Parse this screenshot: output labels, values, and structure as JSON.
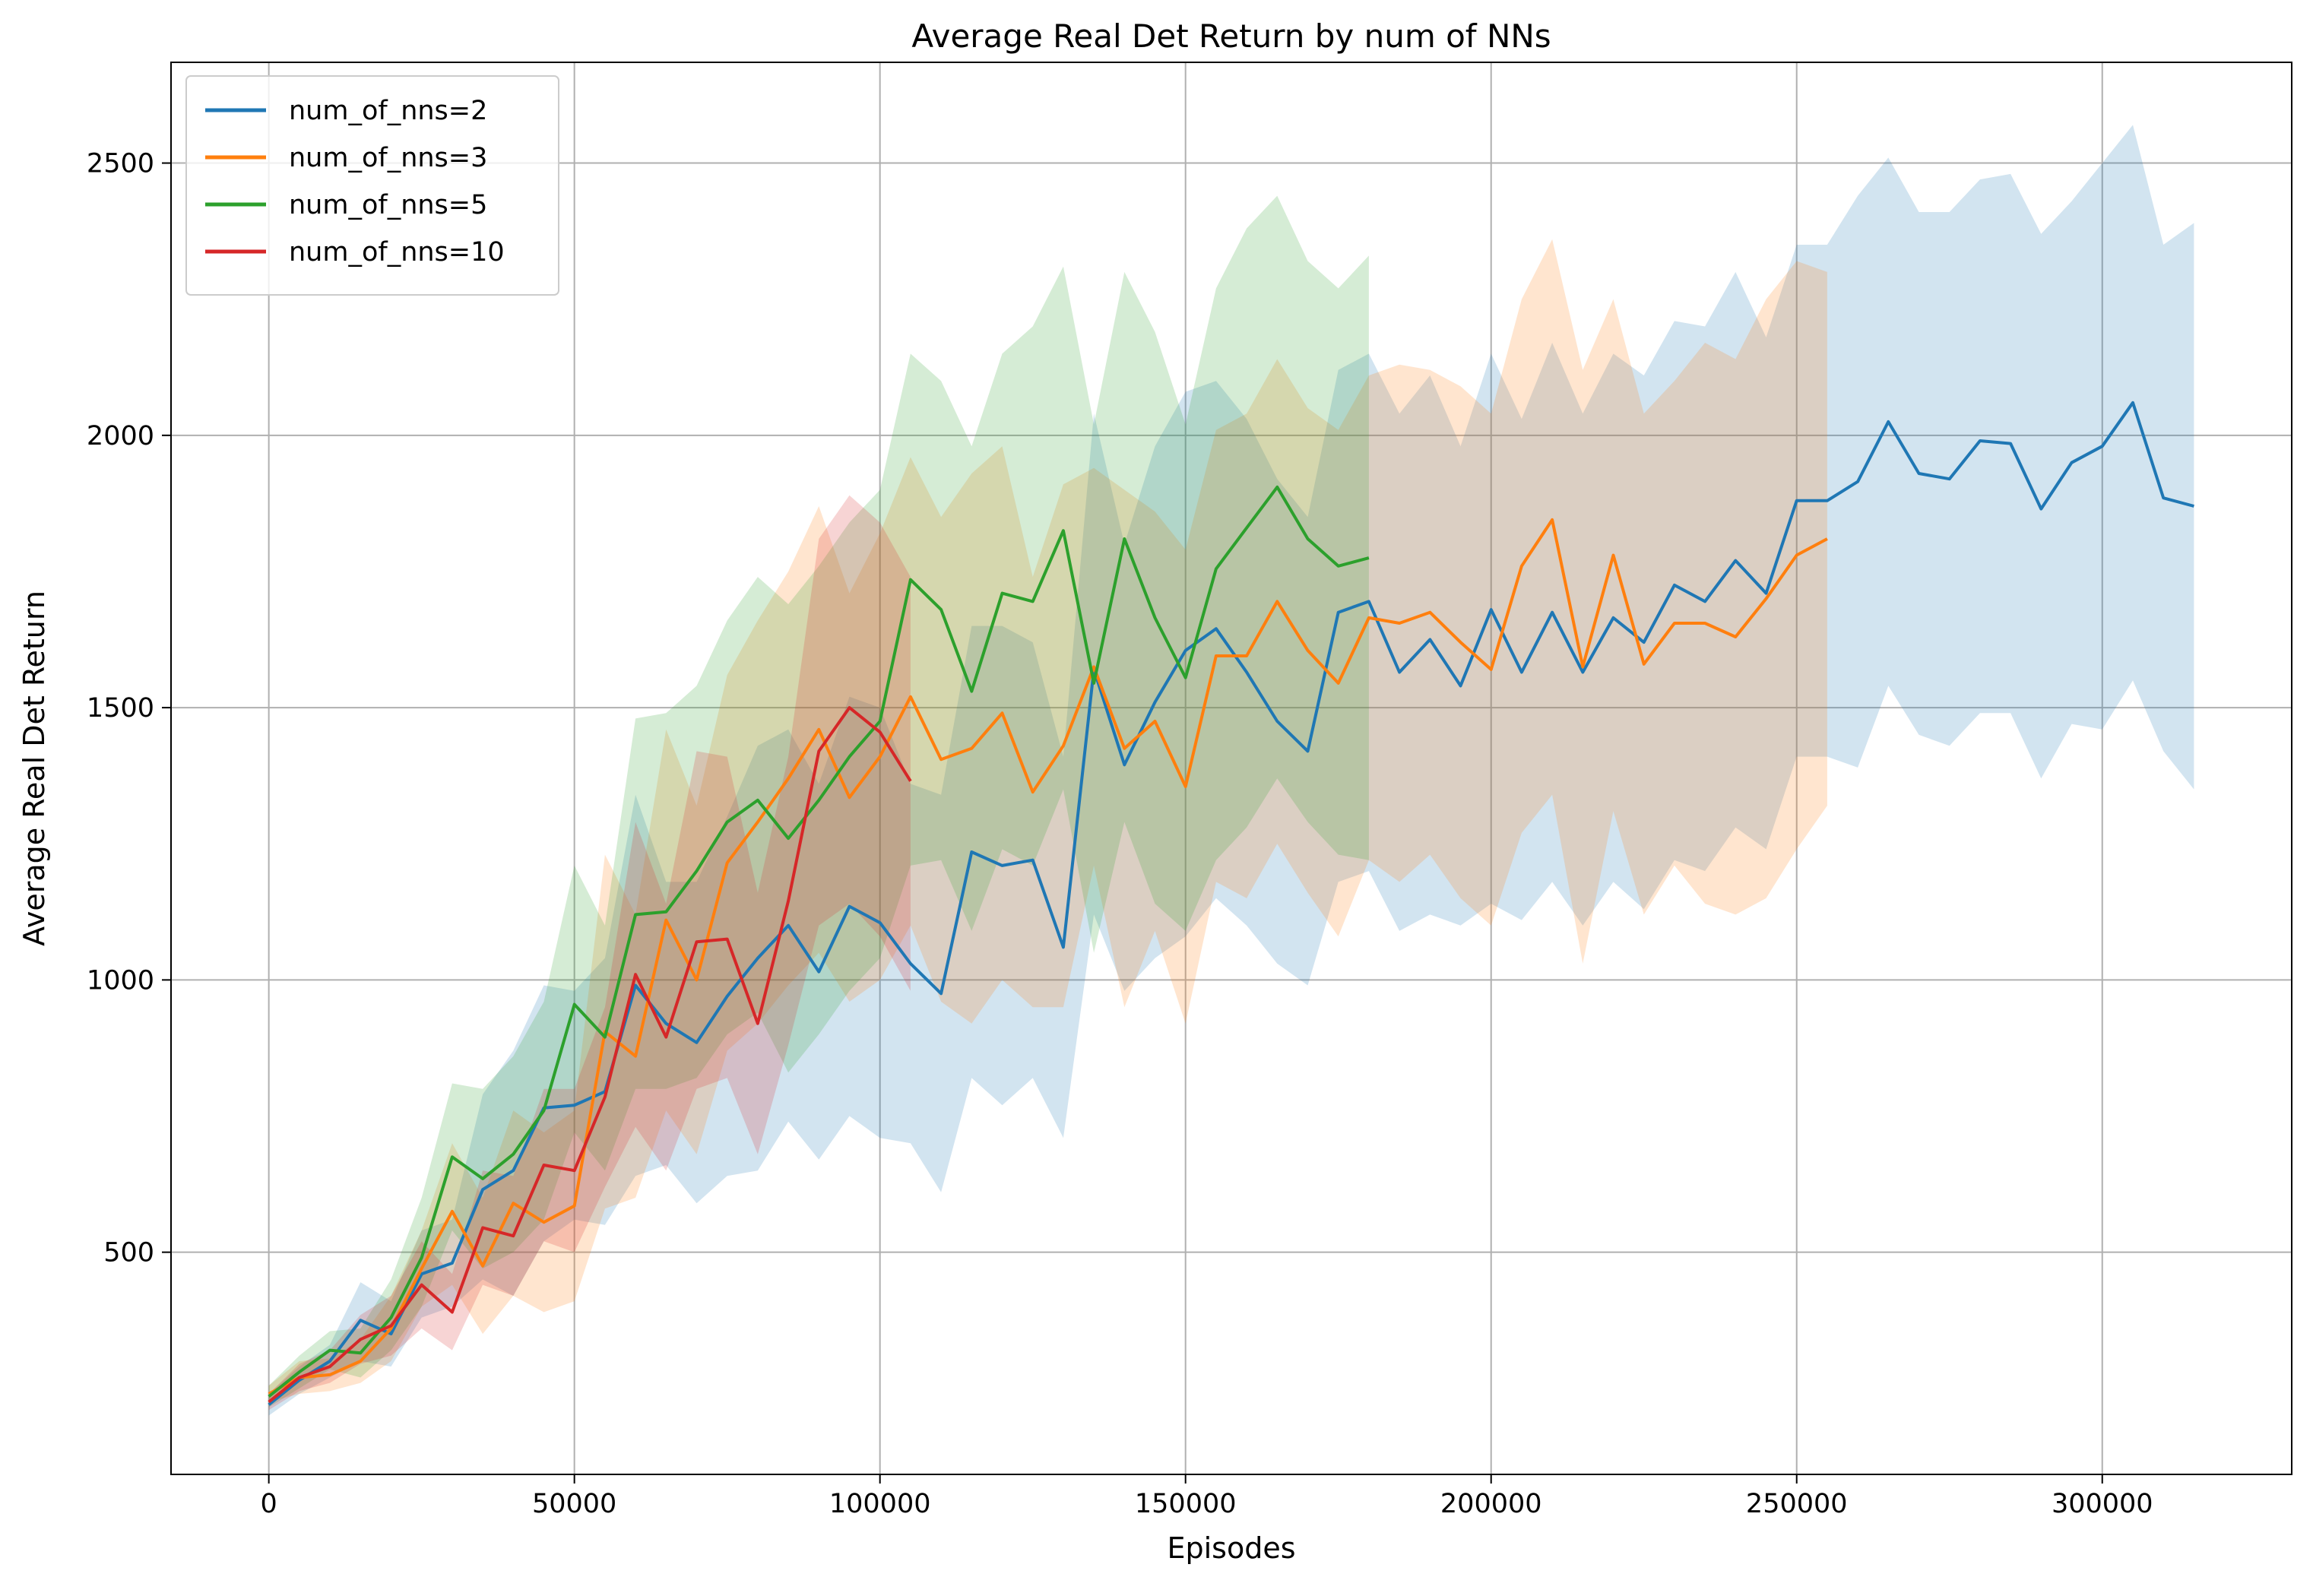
{
  "chart_data": {
    "type": "line",
    "title": "Average Real Det Return by num of NNs",
    "xlabel": "Episodes",
    "ylabel": "Average Real Det Return",
    "xlim": [
      -16000,
      331000
    ],
    "ylim": [
      92,
      2685
    ],
    "x_ticks": [
      0,
      50000,
      100000,
      150000,
      200000,
      250000,
      300000
    ],
    "y_ticks": [
      500,
      1000,
      1500,
      2000,
      2500
    ],
    "grid": true,
    "legend_position": "top-left",
    "series": [
      {
        "name": "num_of_nns=2",
        "color": "#1f77b4",
        "x": [
          0,
          5000,
          10000,
          15000,
          20000,
          25000,
          30000,
          35000,
          40000,
          45000,
          50000,
          55000,
          60000,
          65000,
          70000,
          75000,
          80000,
          85000,
          90000,
          95000,
          100000,
          105000,
          110000,
          115000,
          120000,
          125000,
          130000,
          135000,
          140000,
          145000,
          150000,
          155000,
          160000,
          165000,
          170000,
          175000,
          180000,
          185000,
          190000,
          195000,
          200000,
          205000,
          210000,
          215000,
          220000,
          225000,
          230000,
          235000,
          240000,
          245000,
          250000,
          255000,
          260000,
          265000,
          270000,
          275000,
          280000,
          285000,
          290000,
          295000,
          300000,
          305000,
          310000,
          315000
        ],
        "y": [
          220,
          265,
          300,
          375,
          350,
          460,
          480,
          615,
          650,
          765,
          770,
          795,
          990,
          920,
          885,
          970,
          1040,
          1100,
          1015,
          1135,
          1105,
          1030,
          975,
          1235,
          1210,
          1220,
          1060,
          1570,
          1395,
          1510,
          1605,
          1645,
          1565,
          1475,
          1420,
          1675,
          1695,
          1565,
          1625,
          1540,
          1680,
          1565,
          1675,
          1565,
          1665,
          1620,
          1725,
          1695,
          1770,
          1710,
          1880,
          1880,
          1915,
          2025,
          1930,
          1920,
          1990,
          1985,
          1865,
          1950,
          1980,
          2060,
          1885,
          1870
        ],
        "lower": [
          200,
          240,
          270,
          300,
          290,
          380,
          400,
          450,
          420,
          520,
          560,
          550,
          640,
          660,
          590,
          640,
          650,
          740,
          670,
          750,
          710,
          700,
          610,
          820,
          770,
          820,
          710,
          1120,
          980,
          1040,
          1080,
          1150,
          1100,
          1030,
          990,
          1180,
          1200,
          1090,
          1120,
          1100,
          1140,
          1110,
          1180,
          1100,
          1180,
          1130,
          1220,
          1200,
          1280,
          1240,
          1410,
          1410,
          1390,
          1540,
          1450,
          1430,
          1490,
          1490,
          1370,
          1470,
          1460,
          1550,
          1420,
          1350
        ],
        "upper": [
          240,
          290,
          330,
          445,
          410,
          540,
          560,
          790,
          870,
          990,
          980,
          1040,
          1340,
          1180,
          1180,
          1300,
          1430,
          1460,
          1360,
          1520,
          1500,
          1360,
          1340,
          1650,
          1650,
          1620,
          1410,
          2040,
          1800,
          1980,
          2080,
          2100,
          2030,
          1920,
          1850,
          2120,
          2150,
          2040,
          2110,
          1980,
          2150,
          2030,
          2170,
          2040,
          2150,
          2110,
          2210,
          2200,
          2300,
          2180,
          2350,
          2350,
          2440,
          2510,
          2410,
          2410,
          2470,
          2480,
          2370,
          2430,
          2500,
          2570,
          2350,
          2390
        ]
      },
      {
        "name": "num_of_nns=3",
        "color": "#ff7f0e",
        "x": [
          0,
          5000,
          10000,
          15000,
          20000,
          25000,
          30000,
          35000,
          40000,
          45000,
          50000,
          55000,
          60000,
          65000,
          70000,
          75000,
          80000,
          85000,
          90000,
          95000,
          100000,
          105000,
          110000,
          115000,
          120000,
          125000,
          130000,
          135000,
          140000,
          145000,
          150000,
          155000,
          160000,
          165000,
          170000,
          175000,
          180000,
          185000,
          190000,
          195000,
          200000,
          205000,
          210000,
          215000,
          220000,
          225000,
          230000,
          235000,
          240000,
          245000,
          250000,
          255000
        ],
        "y": [
          240,
          270,
          275,
          300,
          360,
          470,
          575,
          475,
          590,
          555,
          585,
          905,
          860,
          1110,
          1000,
          1215,
          1290,
          1370,
          1460,
          1335,
          1410,
          1520,
          1405,
          1425,
          1490,
          1345,
          1430,
          1575,
          1425,
          1475,
          1355,
          1595,
          1595,
          1695,
          1605,
          1545,
          1665,
          1655,
          1675,
          1620,
          1570,
          1760,
          1845,
          1575,
          1780,
          1580,
          1655,
          1655,
          1630,
          1700,
          1780,
          1810
        ],
        "lower": [
          225,
          240,
          245,
          260,
          300,
          400,
          440,
          350,
          420,
          390,
          410,
          580,
          600,
          760,
          680,
          870,
          920,
          990,
          1050,
          960,
          1000,
          1100,
          960,
          920,
          1000,
          950,
          950,
          1210,
          950,
          1090,
          920,
          1180,
          1150,
          1250,
          1160,
          1080,
          1220,
          1180,
          1230,
          1150,
          1100,
          1270,
          1340,
          1030,
          1310,
          1120,
          1210,
          1140,
          1120,
          1150,
          1240,
          1320
        ],
        "upper": [
          255,
          300,
          305,
          340,
          420,
          540,
          700,
          600,
          760,
          720,
          760,
          1230,
          1120,
          1460,
          1320,
          1560,
          1660,
          1750,
          1870,
          1710,
          1820,
          1960,
          1850,
          1930,
          1980,
          1740,
          1910,
          1940,
          1900,
          1860,
          1790,
          2010,
          2040,
          2140,
          2050,
          2010,
          2110,
          2130,
          2120,
          2090,
          2040,
          2250,
          2360,
          2120,
          2250,
          2040,
          2100,
          2170,
          2140,
          2250,
          2320,
          2300
        ]
      },
      {
        "name": "num_of_nns=5",
        "color": "#2ca02c",
        "x": [
          0,
          5000,
          10000,
          15000,
          20000,
          25000,
          30000,
          35000,
          40000,
          45000,
          50000,
          55000,
          60000,
          65000,
          70000,
          75000,
          80000,
          85000,
          90000,
          95000,
          100000,
          105000,
          110000,
          115000,
          120000,
          125000,
          130000,
          135000,
          140000,
          145000,
          150000,
          155000,
          160000,
          165000,
          170000,
          175000,
          180000
        ],
        "y": [
          235,
          280,
          320,
          315,
          380,
          490,
          675,
          635,
          680,
          760,
          955,
          895,
          1120,
          1125,
          1200,
          1290,
          1330,
          1260,
          1330,
          1410,
          1475,
          1735,
          1680,
          1530,
          1710,
          1695,
          1825,
          1545,
          1810,
          1665,
          1555,
          1755,
          1830,
          1905,
          1810,
          1760,
          1775
        ],
        "lower": [
          215,
          250,
          285,
          270,
          320,
          400,
          540,
          470,
          500,
          560,
          720,
          650,
          800,
          800,
          820,
          900,
          940,
          830,
          900,
          980,
          1040,
          1210,
          1220,
          1090,
          1240,
          1210,
          1350,
          1050,
          1290,
          1140,
          1090,
          1220,
          1280,
          1370,
          1290,
          1230,
          1220
        ],
        "upper": [
          255,
          310,
          355,
          360,
          450,
          600,
          810,
          800,
          860,
          960,
          1210,
          1100,
          1480,
          1490,
          1540,
          1660,
          1740,
          1690,
          1760,
          1840,
          1900,
          2150,
          2100,
          1980,
          2150,
          2200,
          2310,
          2020,
          2300,
          2190,
          2020,
          2270,
          2380,
          2440,
          2320,
          2270,
          2330
        ]
      },
      {
        "name": "num_of_nns=10",
        "color": "#d62728",
        "x": [
          0,
          5000,
          10000,
          15000,
          20000,
          25000,
          30000,
          35000,
          40000,
          45000,
          50000,
          55000,
          60000,
          65000,
          70000,
          75000,
          80000,
          85000,
          90000,
          95000,
          100000,
          105000
        ],
        "y": [
          225,
          270,
          290,
          340,
          365,
          440,
          390,
          545,
          530,
          660,
          650,
          785,
          1010,
          895,
          1070,
          1075,
          920,
          1145,
          1420,
          1500,
          1455,
          1365
        ],
        "lower": [
          210,
          245,
          260,
          295,
          310,
          360,
          320,
          440,
          420,
          520,
          500,
          620,
          730,
          650,
          800,
          820,
          680,
          880,
          1100,
          1140,
          1080,
          980
        ],
        "upper": [
          240,
          295,
          320,
          385,
          420,
          520,
          460,
          650,
          640,
          800,
          800,
          950,
          1290,
          1140,
          1420,
          1410,
          1160,
          1410,
          1810,
          1890,
          1840,
          1740
        ]
      }
    ]
  }
}
